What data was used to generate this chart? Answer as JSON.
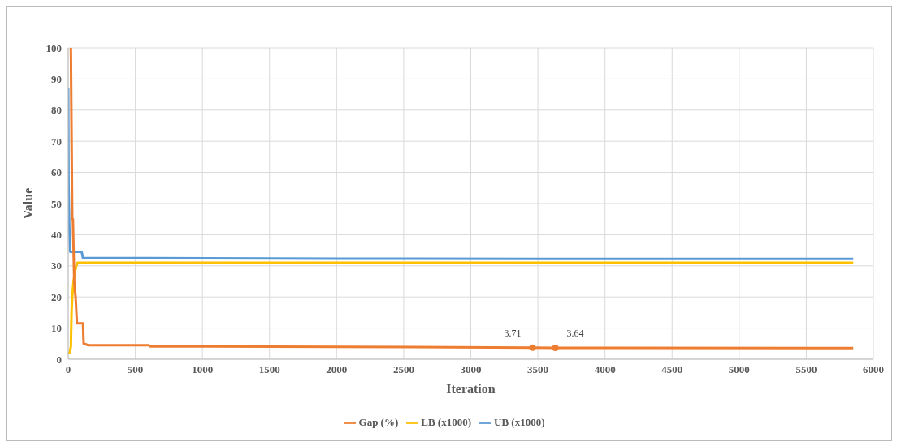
{
  "chart_data": {
    "type": "line",
    "xlabel": "Iteration",
    "ylabel": "Value",
    "xlim": [
      0,
      6000
    ],
    "xticks": [
      0,
      500,
      1000,
      1500,
      2000,
      2500,
      3000,
      3500,
      4000,
      4500,
      5000,
      5500,
      6000
    ],
    "ylim": [
      0,
      100
    ],
    "yticks": [
      0,
      10,
      20,
      30,
      40,
      50,
      60,
      70,
      80,
      90,
      100
    ],
    "grid": true,
    "legend": "bottom",
    "marker": "none",
    "line_style": "solid",
    "series": [
      {
        "name": "LB (x1000)",
        "color": "#ffc000",
        "x": [
          0,
          10,
          20,
          25,
          30,
          40,
          50,
          60,
          70,
          600,
          2000,
          5850
        ],
        "values": [
          2,
          2,
          4,
          15,
          20,
          25,
          28,
          30,
          31,
          31,
          31,
          31
        ]
      },
      {
        "name": "UB (x1000)",
        "color": "#5b9bd5",
        "x": [
          0,
          3,
          8,
          15,
          100,
          110,
          600,
          2000,
          3500,
          5850
        ],
        "values": [
          87,
          55,
          43,
          34.5,
          34.5,
          32.5,
          32.5,
          32.3,
          32.2,
          32.2
        ]
      },
      {
        "name": "Gap (%)",
        "color": "#ed7d31",
        "x": [
          20,
          30,
          35,
          45,
          55,
          65,
          110,
          115,
          150,
          600,
          610,
          2000,
          3460,
          3630,
          5850
        ],
        "values": [
          100,
          45,
          45,
          25,
          20,
          11.5,
          11.5,
          5,
          4.5,
          4.5,
          4.1,
          4,
          3.71,
          3.64,
          3.6
        ],
        "value_labels": [
          null,
          null,
          null,
          null,
          null,
          null,
          null,
          null,
          null,
          null,
          null,
          null,
          "3.71",
          "3.64",
          null
        ]
      }
    ]
  }
}
